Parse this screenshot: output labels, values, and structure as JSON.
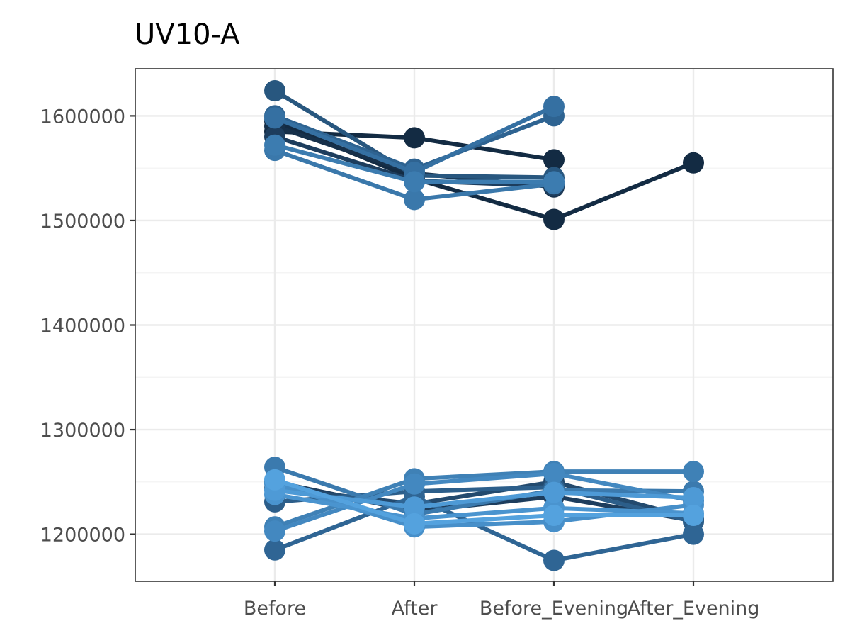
{
  "chart_data": {
    "type": "line",
    "title": "UV10-A",
    "xlabel": "",
    "ylabel": "",
    "categories": [
      "Before",
      "After",
      "Before_Evening",
      "After_Evening"
    ],
    "ylim": [
      1155000,
      1645000
    ],
    "yticks": [
      1200000,
      1300000,
      1400000,
      1500000,
      1600000
    ],
    "ytick_labels": [
      "1200000",
      "1300000",
      "1400000",
      "1500000",
      "1600000"
    ],
    "grid": true,
    "legend": "none",
    "series": [
      {
        "color": "#132b43",
        "values": [
          1585000,
          1579000,
          1558000,
          null
        ]
      },
      {
        "color": "#132b43",
        "values": [
          1595000,
          1540000,
          1501000,
          1555000
        ]
      },
      {
        "color": "#16304a",
        "values": [
          1590000,
          1545000,
          1532000,
          null
        ]
      },
      {
        "color": "#1d3d5d",
        "values": [
          1580000,
          1538000,
          1533000,
          null
        ]
      },
      {
        "color": "#28577f",
        "values": [
          1624000,
          1543000,
          1541000,
          null
        ]
      },
      {
        "color": "#2e6391",
        "values": [
          1600000,
          1549000,
          1600000,
          null
        ]
      },
      {
        "color": "#3570a2",
        "values": [
          1598000,
          1546000,
          1609000,
          null
        ]
      },
      {
        "color": "#3a78ab",
        "values": [
          1567000,
          1520000,
          1535000,
          null
        ]
      },
      {
        "color": "#3c7cb0",
        "values": [
          1572000,
          1537000,
          1537000,
          null
        ]
      },
      {
        "color": "#1d3d5d",
        "values": [
          1250000,
          1222000,
          1236000,
          1213000
        ]
      },
      {
        "color": "#234a6e",
        "values": [
          1244000,
          1229000,
          1250000,
          1215000
        ]
      },
      {
        "color": "#2c5e8a",
        "values": [
          1231000,
          1241000,
          1245000,
          1212000
        ]
      },
      {
        "color": "#2f6594",
        "values": [
          1185000,
          1236000,
          1175000,
          1200000
        ]
      },
      {
        "color": "#3b7aae",
        "values": [
          1264000,
          1219000,
          1242000,
          1241000
        ]
      },
      {
        "color": "#3f81b6",
        "values": [
          1207000,
          1253000,
          1260000,
          1260000
        ]
      },
      {
        "color": "#4388c0",
        "values": [
          1203000,
          1248000,
          1258000,
          1232000
        ]
      },
      {
        "color": "#478fc9",
        "values": [
          1248000,
          1207000,
          1212000,
          1228000
        ]
      },
      {
        "color": "#4a94cf",
        "values": [
          1238000,
          1215000,
          1225000,
          1220000
        ]
      },
      {
        "color": "#4e9ad6",
        "values": [
          1242000,
          1226000,
          1240000,
          1235000
        ]
      },
      {
        "color": "#54a2de",
        "values": [
          1252000,
          1210000,
          1218000,
          1218000
        ]
      }
    ]
  }
}
